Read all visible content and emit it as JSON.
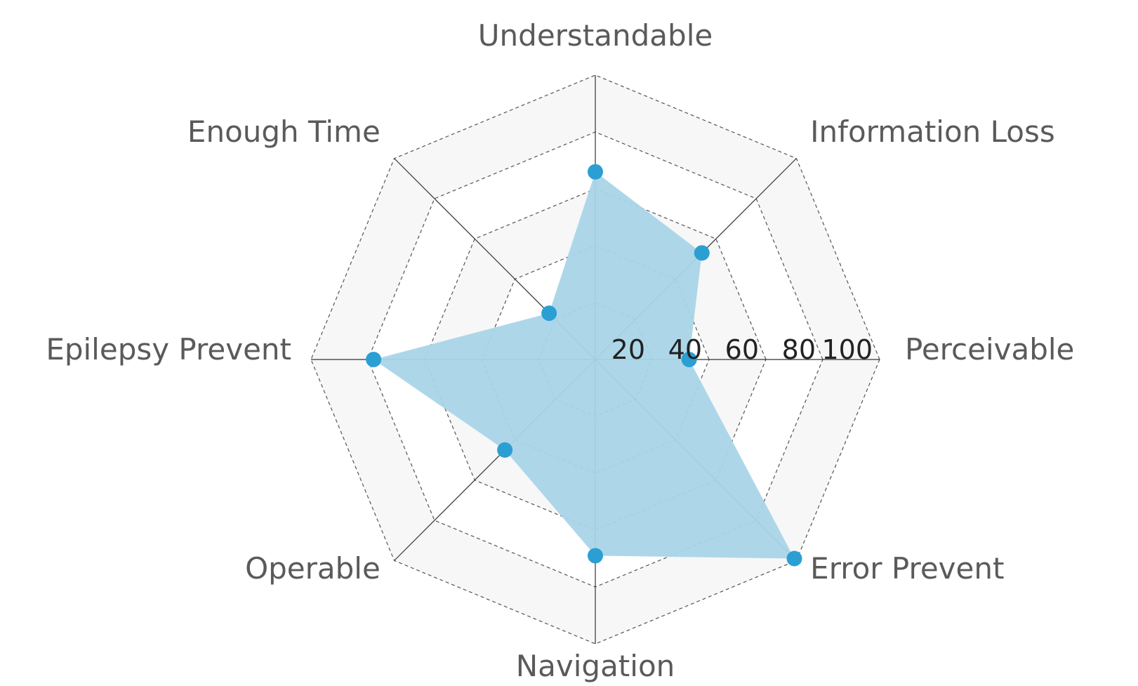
{
  "chart_data": {
    "type": "radar",
    "axes": [
      "Perceivable",
      "Information Loss",
      "Understandable",
      "Enough Time",
      "Epilepsy Prevent",
      "Operable",
      "Navigation",
      "Error Prevent"
    ],
    "series": [
      {
        "values": [
          33,
          53,
          66,
          23,
          78,
          45,
          69,
          99
        ]
      }
    ],
    "ticks": [
      "20",
      "40",
      "60",
      "80",
      "100"
    ],
    "range": [
      0,
      100
    ],
    "grid": "dashed polygon",
    "colors": {
      "fill": "#a9d5e8",
      "point": "#2b9fd3",
      "band": "#f7f7f7",
      "grid": "#555555",
      "axis": "#333333"
    }
  }
}
